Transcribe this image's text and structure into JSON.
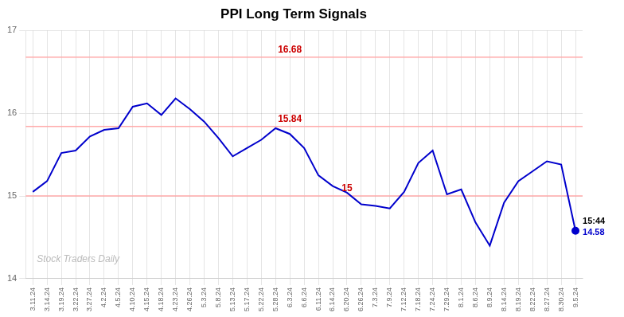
{
  "chart_data": {
    "type": "line",
    "title": "PPI Long Term Signals",
    "categories": [
      "3.11.24",
      "3.14.24",
      "3.19.24",
      "3.22.24",
      "3.27.24",
      "4.2.24",
      "4.5.24",
      "4.10.24",
      "4.15.24",
      "4.18.24",
      "4.23.24",
      "4.26.24",
      "5.3.24",
      "5.8.24",
      "5.13.24",
      "5.17.24",
      "5.22.24",
      "5.28.24",
      "6.3.24",
      "6.6.24",
      "6.11.24",
      "6.14.24",
      "6.20.24",
      "6.26.24",
      "7.3.24",
      "7.9.24",
      "7.12.24",
      "7.18.24",
      "7.24.24",
      "7.29.24",
      "8.1.24",
      "8.6.24",
      "8.9.24",
      "8.14.24",
      "8.19.24",
      "8.22.24",
      "8.27.24",
      "8.30.24",
      "9.5.24"
    ],
    "values": [
      15.05,
      15.18,
      15.52,
      15.55,
      15.72,
      15.8,
      15.82,
      16.08,
      16.12,
      15.98,
      16.18,
      16.05,
      15.9,
      15.7,
      15.48,
      15.58,
      15.68,
      15.82,
      15.75,
      15.58,
      15.25,
      15.12,
      15.04,
      14.9,
      14.88,
      14.85,
      15.05,
      15.4,
      15.55,
      15.02,
      15.08,
      14.68,
      14.4,
      14.92,
      15.18,
      15.3,
      15.42,
      15.38,
      14.58
    ],
    "color": "#0000cc",
    "hlines": [
      {
        "y": 16.68,
        "color": "#ffaaaa"
      },
      {
        "y": 15.84,
        "color": "#ffaaaa"
      },
      {
        "y": 15.0,
        "color": "#ffaaaa"
      }
    ],
    "annotations": [
      {
        "text": "16.68",
        "x": "6.3.24",
        "y": 16.68,
        "color": "#cc0000"
      },
      {
        "text": "15.84",
        "x": "6.3.24",
        "y": 15.84,
        "color": "#cc0000"
      },
      {
        "text": "15",
        "x": "6.20.24",
        "y": 15.0,
        "color": "#cc0000"
      }
    ],
    "end_annotation": {
      "lines": [
        "15:44",
        "14.58"
      ],
      "colors": [
        "#000000",
        "#0000cc"
      ],
      "marker": "circle",
      "marker_color": "#0000cc"
    },
    "watermark": {
      "text": "Stock Traders Daily",
      "color": "#bbbbbb"
    },
    "ylim": [
      14,
      17
    ],
    "yticks": [
      14,
      15,
      16,
      17
    ],
    "grid": true
  }
}
